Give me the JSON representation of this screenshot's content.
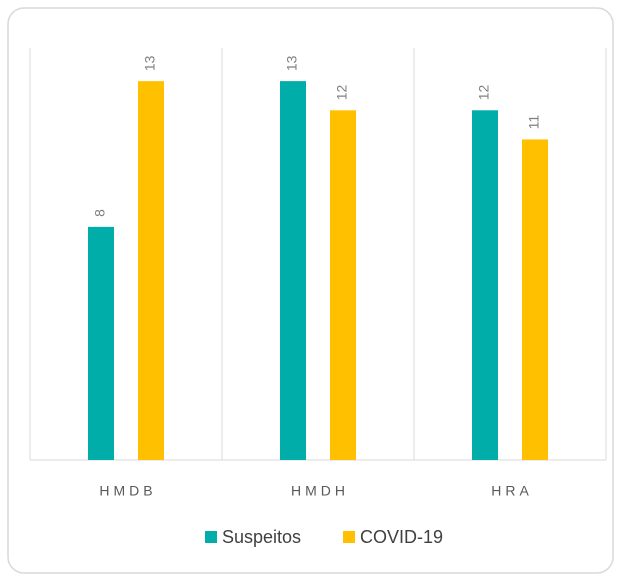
{
  "chart_data": {
    "type": "bar",
    "categories": [
      "HMDB",
      "HMDH",
      "HRA"
    ],
    "series": [
      {
        "name": "Suspeitos",
        "color": "#00ADA9",
        "values": [
          8,
          13,
          12
        ]
      },
      {
        "name": "COVID-19",
        "color": "#FFC000",
        "values": [
          13,
          12,
          11
        ]
      }
    ],
    "ylim": [
      0,
      14
    ],
    "legend": "bottom"
  }
}
